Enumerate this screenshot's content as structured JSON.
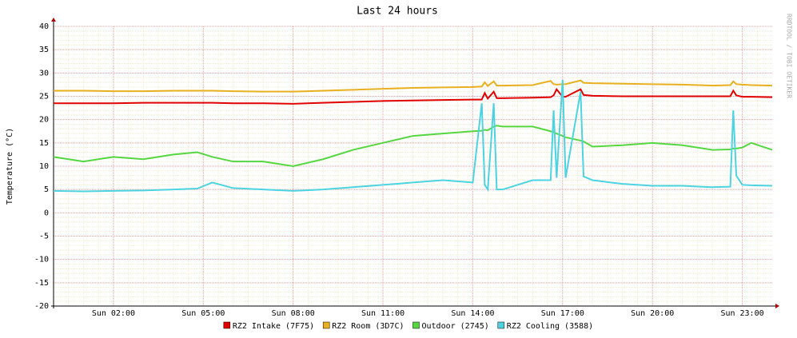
{
  "chart_data": {
    "type": "line",
    "title": "Last 24 hours",
    "y_label": "Temperature (°C)",
    "watermark": "RRDTOOL / TOBI OETIKER",
    "x": [
      0,
      1,
      2,
      3,
      4,
      4.8,
      5.3,
      6,
      7,
      8,
      9,
      10,
      11,
      12,
      13,
      14,
      14.3,
      14.4,
      14.5,
      14.7,
      14.8,
      15,
      16,
      16.6,
      16.7,
      16.8,
      17,
      17.1,
      17.6,
      17.7,
      18,
      19,
      20,
      21,
      22,
      22.6,
      22.7,
      22.8,
      23,
      23.3,
      24
    ],
    "xlim": [
      0,
      24
    ],
    "xticks": [
      {
        "value": 2,
        "label": "Sun 02:00"
      },
      {
        "value": 5,
        "label": "Sun 05:00"
      },
      {
        "value": 8,
        "label": "Sun 08:00"
      },
      {
        "value": 11,
        "label": "Sun 11:00"
      },
      {
        "value": 14,
        "label": "Sun 14:00"
      },
      {
        "value": 17,
        "label": "Sun 17:00"
      },
      {
        "value": 20,
        "label": "Sun 20:00"
      },
      {
        "value": 23,
        "label": "Sun 23:00"
      }
    ],
    "ylim": [
      -20,
      40
    ],
    "yticks": [
      -20,
      -15,
      -10,
      -5,
      0,
      5,
      10,
      15,
      20,
      25,
      30,
      35,
      40
    ],
    "grid": true,
    "legend": "bottom",
    "series": [
      {
        "name": "RZ2 Intake (7F75)",
        "color": "#e00000",
        "values": [
          23.5,
          23.5,
          23.5,
          23.6,
          23.6,
          23.6,
          23.6,
          23.5,
          23.5,
          23.4,
          23.6,
          23.8,
          24,
          24.1,
          24.2,
          24.3,
          24.3,
          25.7,
          24.5,
          26,
          24.6,
          24.6,
          24.7,
          24.8,
          25.2,
          26.5,
          24.9,
          24.9,
          26.5,
          25.3,
          25.1,
          25,
          25,
          25,
          25,
          25,
          26.2,
          25.2,
          24.9,
          24.9,
          24.8
        ]
      },
      {
        "name": "RZ2 Room (3D7C)",
        "color": "#e8b020",
        "values": [
          26.2,
          26.2,
          26.1,
          26.1,
          26.2,
          26.2,
          26.2,
          26.1,
          26,
          26,
          26.2,
          26.4,
          26.6,
          26.8,
          26.9,
          27,
          27.1,
          28,
          27.2,
          28.2,
          27.3,
          27.3,
          27.4,
          28.3,
          27.6,
          27.5,
          27.6,
          27.6,
          28.4,
          27.9,
          27.8,
          27.7,
          27.6,
          27.5,
          27.3,
          27.4,
          28.2,
          27.6,
          27.5,
          27.4,
          27.3
        ]
      },
      {
        "name": "Outdoor (2745)",
        "color": "#55d641",
        "values": [
          12,
          11,
          12,
          11.5,
          12.5,
          13,
          12,
          11,
          11,
          10,
          11.5,
          13.5,
          15,
          16.5,
          17,
          17.5,
          17.6,
          17.8,
          17.7,
          18.5,
          18.7,
          18.5,
          18.5,
          17.5,
          17.3,
          17,
          16.5,
          16.2,
          15.5,
          15.3,
          14.2,
          14.5,
          15,
          14.5,
          13.5,
          13.6,
          13.8,
          13.8,
          14,
          15,
          13.5
        ]
      },
      {
        "name": "RZ2 Cooling (3588)",
        "color": "#4dd3e0",
        "values": [
          4.7,
          4.6,
          4.7,
          4.8,
          5,
          5.2,
          6.5,
          5.3,
          5,
          4.7,
          5,
          5.5,
          6,
          6.5,
          7,
          6.5,
          23.5,
          6,
          5,
          23.5,
          5,
          5,
          7,
          7,
          22,
          7.5,
          28.5,
          7.5,
          26,
          7.8,
          7,
          6.2,
          5.8,
          5.8,
          5.5,
          5.6,
          22,
          8,
          6,
          5.9,
          5.8
        ]
      }
    ]
  }
}
